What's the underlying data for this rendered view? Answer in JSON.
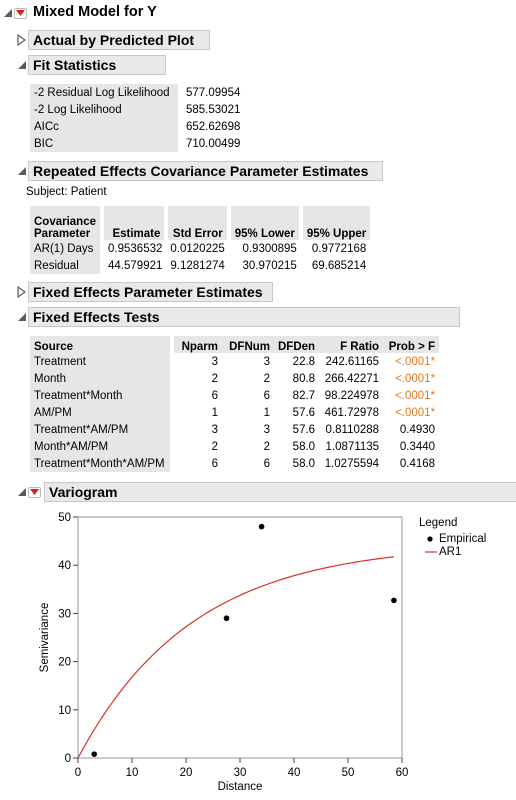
{
  "report": {
    "title": "Mixed Model for Y"
  },
  "sections": {
    "actual_by_predicted": "Actual by Predicted Plot",
    "fit_statistics": "Fit Statistics",
    "repeated_effects": "Repeated Effects Covariance Parameter Estimates",
    "fixed_effects_params": "Fixed Effects Parameter Estimates",
    "fixed_effects_tests": "Fixed Effects Tests",
    "variogram": "Variogram"
  },
  "fit_stats": [
    {
      "label": "-2 Residual Log Likelihood",
      "value": "577.09954"
    },
    {
      "label": "-2 Log Likelihood",
      "value": "585.53021"
    },
    {
      "label": "AICc",
      "value": "652.62698"
    },
    {
      "label": "BIC",
      "value": "710.00499"
    }
  ],
  "repeated": {
    "subject": "Subject: Patient",
    "headers": [
      "Covariance\nParameter",
      "Estimate",
      "Std Error",
      "95% Lower",
      "95% Upper"
    ],
    "rows": [
      [
        "AR(1) Days",
        "0.9536532",
        "0.0120225",
        "0.9300895",
        "0.9772168"
      ],
      [
        "Residual",
        "44.579921",
        "9.1281274",
        "30.970215",
        "69.685214"
      ]
    ]
  },
  "tests": {
    "headers": [
      "Source",
      "Nparm",
      "DFNum",
      "DFDen",
      "F Ratio",
      "Prob > F"
    ],
    "rows": [
      [
        "Treatment",
        "3",
        "3",
        "22.8",
        "242.61165",
        "<.0001*"
      ],
      [
        "Month",
        "2",
        "2",
        "80.8",
        "266.42271",
        "<.0001*"
      ],
      [
        "Treatment*Month",
        "6",
        "6",
        "82.7",
        "98.224978",
        "<.0001*"
      ],
      [
        "AM/PM",
        "1",
        "1",
        "57.6",
        "461.72978",
        "<.0001*"
      ],
      [
        "Treatment*AM/PM",
        "3",
        "3",
        "57.6",
        "0.8110288",
        "0.4930"
      ],
      [
        "Month*AM/PM",
        "2",
        "2",
        "58.0",
        "1.0871135",
        "0.3440"
      ],
      [
        "Treatment*Month*AM/PM",
        "6",
        "6",
        "58.0",
        "1.0275594",
        "0.4168"
      ]
    ]
  },
  "chart_data": {
    "type": "scatter",
    "xlabel": "Distance",
    "ylabel": "Semivariance",
    "xlim": [
      0,
      60
    ],
    "ylim": [
      0,
      50
    ],
    "xticks": [
      0,
      10,
      20,
      30,
      40,
      50,
      60
    ],
    "yticks": [
      0,
      10,
      20,
      30,
      40,
      50
    ],
    "legend": {
      "title": "Legend",
      "items": [
        "Empirical",
        "AR1"
      ]
    },
    "series": [
      {
        "name": "Empirical",
        "points": [
          [
            3,
            0.8
          ],
          [
            27.5,
            29
          ],
          [
            34,
            48
          ],
          [
            58.5,
            32.7
          ]
        ]
      },
      {
        "name": "AR1",
        "sill": 44.58,
        "range": 21.2,
        "x_end": 58.5
      }
    ],
    "colors": {
      "ar1": "#d9332b",
      "empirical": "#000000"
    }
  }
}
